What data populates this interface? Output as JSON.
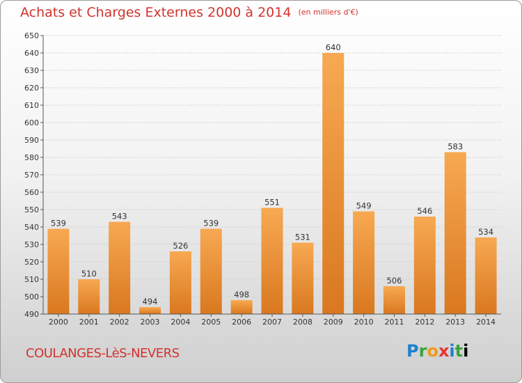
{
  "title": "Achats et Charges Externes 2000 à 2014",
  "unit_note": "(en milliers d'€)",
  "commune": "COULANGES-LèS-NEVERS",
  "brand": [
    "P",
    "r",
    "o",
    "x",
    "i",
    "t",
    "i"
  ],
  "colors": {
    "title": "#d1332e",
    "bar_top": "#f7a952",
    "bar_bottom": "#d9781f",
    "grid": "#d0d0d0"
  },
  "chart_data": {
    "type": "bar",
    "categories": [
      "2000",
      "2001",
      "2002",
      "2003",
      "2004",
      "2005",
      "2006",
      "2007",
      "2008",
      "2009",
      "2010",
      "2011",
      "2012",
      "2013",
      "2014"
    ],
    "values": [
      539,
      510,
      543,
      494,
      526,
      539,
      498,
      551,
      531,
      640,
      549,
      506,
      546,
      583,
      534
    ],
    "ylim": [
      490,
      650
    ],
    "yticks": [
      490,
      500,
      510,
      520,
      530,
      540,
      550,
      560,
      570,
      580,
      590,
      600,
      610,
      620,
      630,
      640,
      650
    ],
    "grid": true,
    "xlabel": "",
    "ylabel": ""
  }
}
